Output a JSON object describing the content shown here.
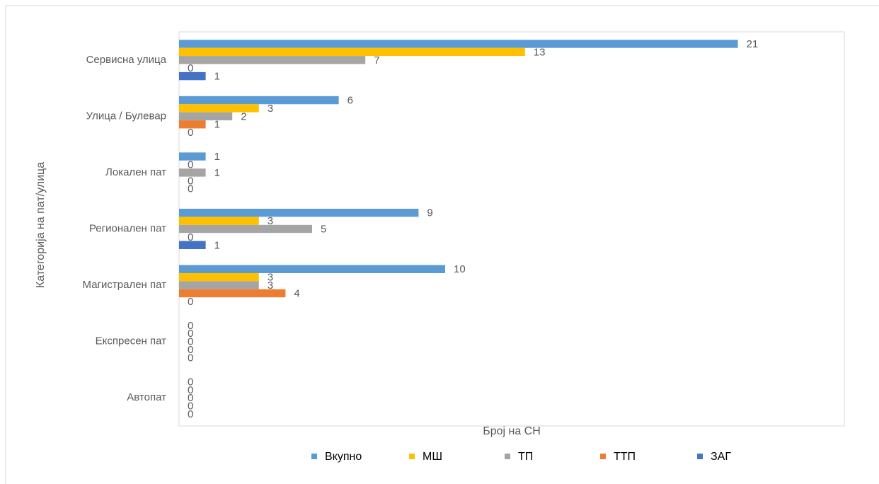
{
  "chart_data": {
    "type": "hbar",
    "y_label": "Категорија на пат/улица",
    "x_label": "Број на СН",
    "categories": [
      "Сервисна улица",
      "Улица / Булевар",
      "Локален пат",
      "Регионален пат",
      "Магистрален пат",
      "Експресен пат",
      "Автопат"
    ],
    "series": [
      {
        "name": "Вкупно",
        "color": "#5b9bd5",
        "values": [
          21,
          6,
          1,
          9,
          10,
          0,
          0
        ]
      },
      {
        "name": "МШ",
        "color": "#ffc000",
        "values": [
          13,
          3,
          0,
          3,
          3,
          0,
          0
        ]
      },
      {
        "name": "ТП",
        "color": "#a5a5a5",
        "values": [
          7,
          2,
          1,
          5,
          3,
          0,
          0
        ]
      },
      {
        "name": "ТТП",
        "color": "#ed7d31",
        "values": [
          0,
          1,
          0,
          0,
          4,
          0,
          0
        ]
      },
      {
        "name": "ЗАГ",
        "color": "#4472c4",
        "values": [
          1,
          0,
          0,
          1,
          0,
          0,
          0
        ]
      }
    ],
    "xlim": [
      0,
      25
    ],
    "legend": "bottom"
  }
}
